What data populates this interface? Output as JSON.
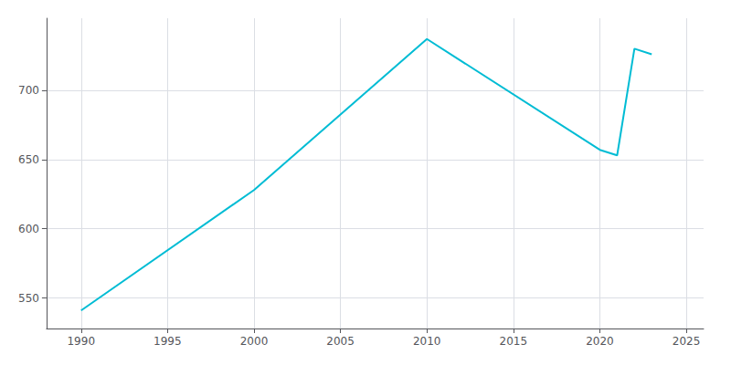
{
  "chart_data": {
    "type": "line",
    "x": [
      1990,
      2000,
      2010,
      2020,
      2021,
      2022,
      2023
    ],
    "values": [
      541,
      628,
      737,
      657,
      653,
      730,
      726
    ],
    "color": "#00bcd4",
    "xlim": [
      1988,
      2026
    ],
    "ylim": [
      528,
      752
    ],
    "xticks": [
      1990,
      1995,
      2000,
      2005,
      2010,
      2015,
      2020,
      2025
    ],
    "yticks": [
      550,
      600,
      650,
      700
    ],
    "grid": true
  }
}
